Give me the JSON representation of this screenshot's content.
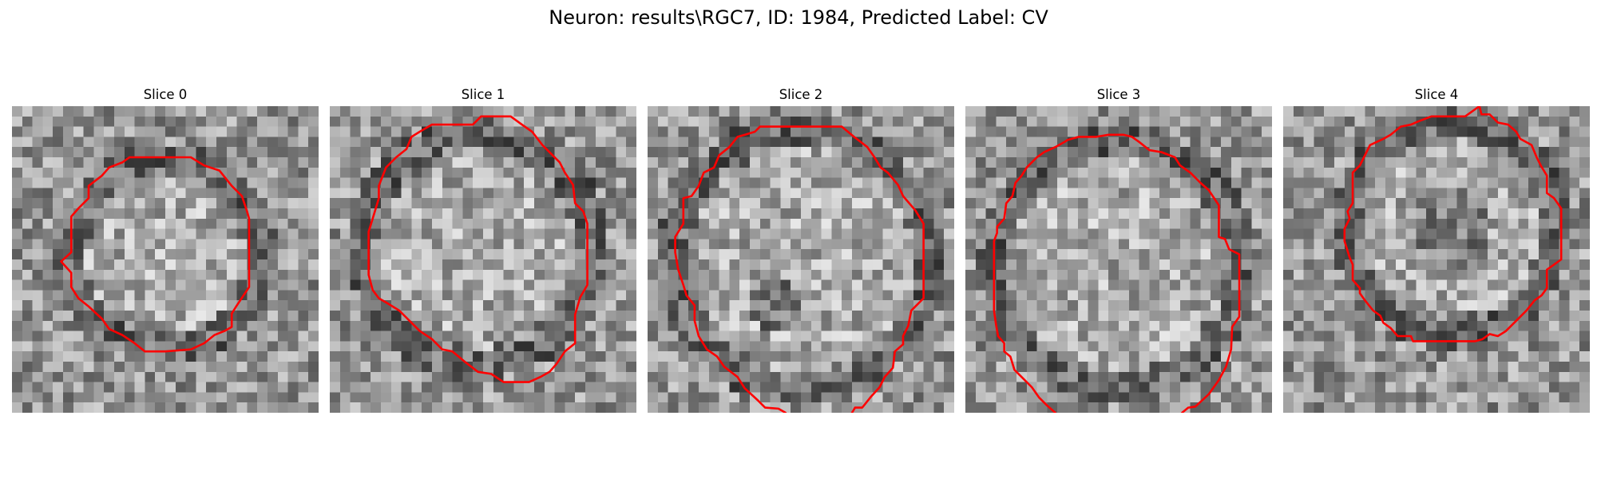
{
  "figure": {
    "suptitle": "Neuron: results\\RGC7, ID: 1984, Predicted Label: CV"
  },
  "panels": [
    {
      "title": "Slice 0"
    },
    {
      "title": "Slice 1"
    },
    {
      "title": "Slice 2"
    },
    {
      "title": "Slice 3"
    },
    {
      "title": "Slice 4"
    }
  ],
  "style": {
    "contour_color": "#ff0000",
    "image_colormap": "gray"
  }
}
